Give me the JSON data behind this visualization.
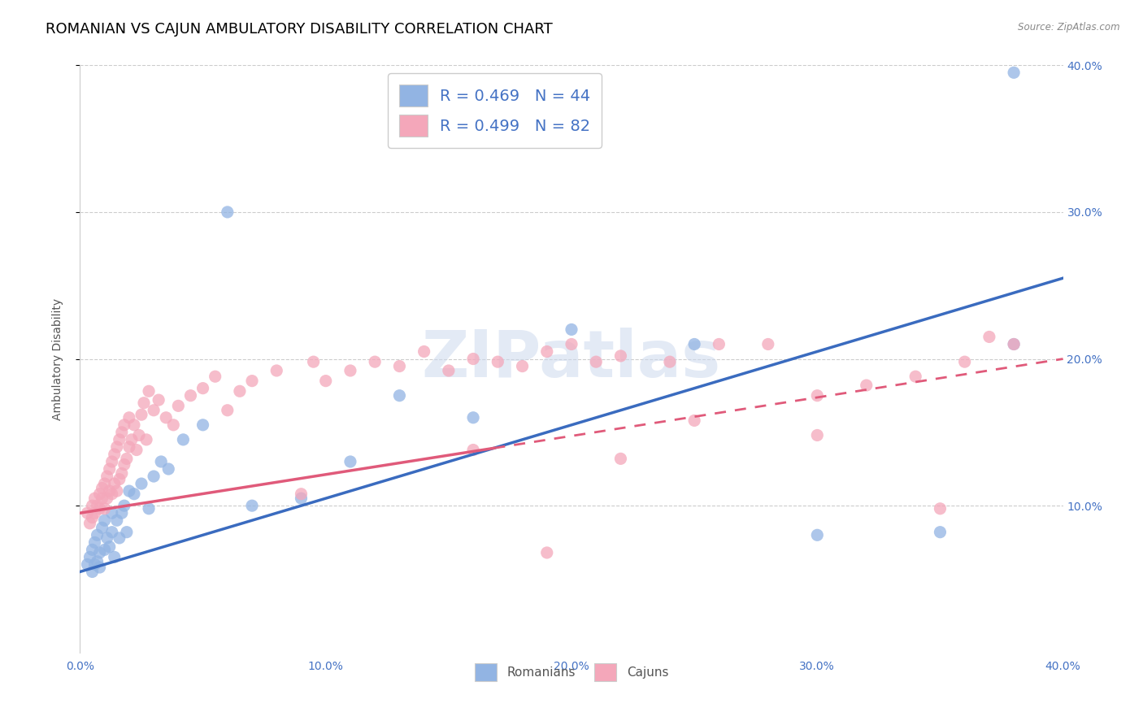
{
  "title": "ROMANIAN VS CAJUN AMBULATORY DISABILITY CORRELATION CHART",
  "source": "Source: ZipAtlas.com",
  "ylabel": "Ambulatory Disability",
  "xlim": [
    0.0,
    0.4
  ],
  "ylim": [
    0.0,
    0.4
  ],
  "romanian_color": "#92b4e3",
  "cajun_color": "#f4a7ba",
  "romanian_line_color": "#3a6bbf",
  "cajun_line_color": "#e05a7a",
  "legend_R_romanian": "0.469",
  "legend_N_romanian": "44",
  "legend_R_cajun": "0.499",
  "legend_N_cajun": "82",
  "watermark": "ZIPatlas",
  "title_fontsize": 13,
  "axis_label_fontsize": 10,
  "tick_fontsize": 10,
  "legend_fontsize": 14,
  "rom_line_x0": 0.0,
  "rom_line_y0": 0.055,
  "rom_line_x1": 0.4,
  "rom_line_y1": 0.255,
  "caj_line_x0": 0.0,
  "caj_line_y0": 0.095,
  "caj_line_x1": 0.4,
  "caj_line_y1": 0.2,
  "rom_x": [
    0.003,
    0.004,
    0.005,
    0.005,
    0.006,
    0.006,
    0.007,
    0.007,
    0.008,
    0.008,
    0.009,
    0.01,
    0.01,
    0.011,
    0.012,
    0.013,
    0.013,
    0.014,
    0.015,
    0.016,
    0.017,
    0.018,
    0.019,
    0.02,
    0.022,
    0.025,
    0.028,
    0.03,
    0.033,
    0.036,
    0.042,
    0.05,
    0.06,
    0.07,
    0.09,
    0.11,
    0.13,
    0.16,
    0.2,
    0.25,
    0.3,
    0.35,
    0.38,
    0.38
  ],
  "rom_y": [
    0.06,
    0.065,
    0.055,
    0.07,
    0.06,
    0.075,
    0.062,
    0.08,
    0.058,
    0.068,
    0.085,
    0.07,
    0.09,
    0.078,
    0.072,
    0.095,
    0.082,
    0.065,
    0.09,
    0.078,
    0.095,
    0.1,
    0.082,
    0.11,
    0.108,
    0.115,
    0.098,
    0.12,
    0.13,
    0.125,
    0.145,
    0.155,
    0.3,
    0.1,
    0.105,
    0.13,
    0.175,
    0.16,
    0.22,
    0.21,
    0.08,
    0.082,
    0.395,
    0.21
  ],
  "caj_x": [
    0.003,
    0.004,
    0.005,
    0.005,
    0.006,
    0.006,
    0.007,
    0.008,
    0.008,
    0.009,
    0.009,
    0.01,
    0.01,
    0.011,
    0.011,
    0.012,
    0.012,
    0.013,
    0.013,
    0.014,
    0.014,
    0.015,
    0.015,
    0.016,
    0.016,
    0.017,
    0.017,
    0.018,
    0.018,
    0.019,
    0.02,
    0.02,
    0.021,
    0.022,
    0.023,
    0.024,
    0.025,
    0.026,
    0.027,
    0.028,
    0.03,
    0.032,
    0.035,
    0.038,
    0.04,
    0.045,
    0.05,
    0.055,
    0.06,
    0.065,
    0.07,
    0.08,
    0.09,
    0.095,
    0.1,
    0.11,
    0.12,
    0.13,
    0.14,
    0.15,
    0.16,
    0.17,
    0.18,
    0.19,
    0.2,
    0.21,
    0.22,
    0.24,
    0.26,
    0.28,
    0.3,
    0.32,
    0.34,
    0.36,
    0.38,
    0.35,
    0.37,
    0.3,
    0.25,
    0.22,
    0.19,
    0.16
  ],
  "caj_y": [
    0.095,
    0.088,
    0.092,
    0.1,
    0.095,
    0.105,
    0.1,
    0.098,
    0.108,
    0.105,
    0.112,
    0.098,
    0.115,
    0.105,
    0.12,
    0.11,
    0.125,
    0.108,
    0.13,
    0.115,
    0.135,
    0.11,
    0.14,
    0.118,
    0.145,
    0.122,
    0.15,
    0.128,
    0.155,
    0.132,
    0.14,
    0.16,
    0.145,
    0.155,
    0.138,
    0.148,
    0.162,
    0.17,
    0.145,
    0.178,
    0.165,
    0.172,
    0.16,
    0.155,
    0.168,
    0.175,
    0.18,
    0.188,
    0.165,
    0.178,
    0.185,
    0.192,
    0.108,
    0.198,
    0.185,
    0.192,
    0.198,
    0.195,
    0.205,
    0.192,
    0.2,
    0.198,
    0.195,
    0.205,
    0.21,
    0.198,
    0.202,
    0.198,
    0.21,
    0.21,
    0.175,
    0.182,
    0.188,
    0.198,
    0.21,
    0.098,
    0.215,
    0.148,
    0.158,
    0.132,
    0.068,
    0.138
  ]
}
